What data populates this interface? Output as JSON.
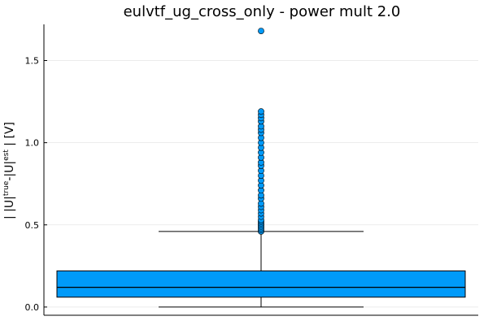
{
  "chart_data": {
    "type": "box",
    "title": "eulvtf_ug_cross_only - power mult 2.0",
    "ylabel_parts": [
      "| |U|",
      "true",
      "-|U|",
      "est",
      " | [V]"
    ],
    "xlabel": "",
    "ylim": [
      -0.05,
      1.72
    ],
    "yticks": [
      0.0,
      0.5,
      1.0,
      1.5
    ],
    "ytick_labels": [
      "0.0",
      "0.5",
      "1.0",
      "1.5"
    ],
    "grid": true,
    "box_color": "#009af9",
    "box": {
      "whisker_low": 0.0,
      "q1": 0.06,
      "median": 0.12,
      "q3": 0.22,
      "whisker_high": 0.46
    },
    "outliers": [
      0.46,
      0.47,
      0.48,
      0.49,
      0.5,
      0.51,
      0.52,
      0.53,
      0.55,
      0.57,
      0.59,
      0.61,
      0.63,
      0.66,
      0.68,
      0.71,
      0.74,
      0.77,
      0.8,
      0.83,
      0.86,
      0.88,
      0.91,
      0.94,
      0.97,
      1.0,
      1.03,
      1.06,
      1.08,
      1.1,
      1.13,
      1.15,
      1.17,
      1.19,
      1.68
    ]
  }
}
